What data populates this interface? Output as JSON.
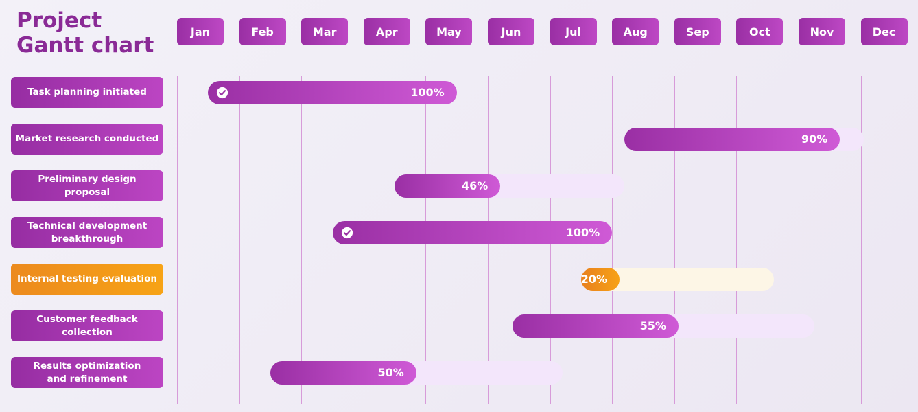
{
  "title": "Project Gantt chart",
  "chart_data": {
    "type": "gantt",
    "title": "Project Gantt chart",
    "months": [
      "Jan",
      "Feb",
      "Mar",
      "Apr",
      "May",
      "Jun",
      "Jul",
      "Aug",
      "Sep",
      "Oct",
      "Nov",
      "Dec"
    ],
    "tasks": [
      {
        "name": "Task planning initiated",
        "start": 1.5,
        "end": 5.5,
        "progress": 100,
        "progress_label": "100%",
        "completed": true,
        "color": "purple"
      },
      {
        "name": "Market research conducted",
        "start": 8.2,
        "end": 12.05,
        "progress": 90,
        "progress_label": "90%",
        "completed": false,
        "color": "purple"
      },
      {
        "name": "Preliminary design proposal",
        "start": 4.5,
        "end": 8.2,
        "progress": 46,
        "progress_label": "46%",
        "completed": false,
        "color": "purple"
      },
      {
        "name": "Technical development\nbreakthrough",
        "start": 3.5,
        "end": 8.0,
        "progress": 100,
        "progress_label": "100%",
        "completed": true,
        "color": "purple"
      },
      {
        "name": "Internal testing evaluation",
        "start": 7.5,
        "end": 10.6,
        "progress": 20,
        "progress_label": "20%",
        "completed": false,
        "color": "orange"
      },
      {
        "name": "Customer feedback collection",
        "start": 6.4,
        "end": 11.25,
        "progress": 55,
        "progress_label": "55%",
        "completed": false,
        "color": "purple"
      },
      {
        "name": "Results optimization\nand refinement",
        "start": 2.5,
        "end": 7.2,
        "progress": 50,
        "progress_label": "50%",
        "completed": false,
        "color": "purple"
      }
    ]
  },
  "colors": {
    "title": "#8a2a96",
    "purple_start": "#9a2fa4",
    "purple_end": "#cf5ad6",
    "orange_start": "#e8801e",
    "orange_end": "#f7a216",
    "purple_track": "#f3e6fb",
    "orange_track": "#fdf6e6",
    "gridline": "#d79bd9"
  },
  "icons": {
    "completed": "check-circle-icon"
  }
}
